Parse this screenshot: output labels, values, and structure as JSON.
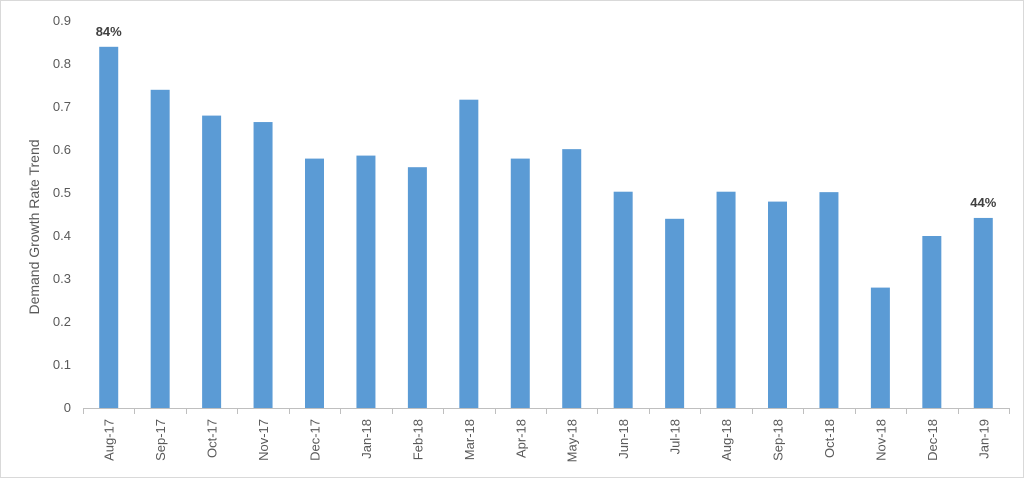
{
  "chart_data": {
    "type": "bar",
    "title": "",
    "xlabel": "",
    "ylabel": "Demand Growth Rate Trend",
    "ylim": [
      0,
      0.9
    ],
    "yticks": [
      "0",
      "0.1",
      "0.2",
      "0.3",
      "0.4",
      "0.5",
      "0.6",
      "0.7",
      "0.8",
      "0.9"
    ],
    "grid": false,
    "legend": "none",
    "bar_color": "#5b9bd5",
    "categories": [
      "Aug-17",
      "Sep-17",
      "Oct-17",
      "Nov-17",
      "Dec-17",
      "Jan-18",
      "Feb-18",
      "Mar-18",
      "Apr-18",
      "May-18",
      "Jun-18",
      "Jul-18",
      "Aug-18",
      "Sep-18",
      "Oct-18",
      "Nov-18",
      "Dec-18",
      "Jan-19"
    ],
    "values": [
      0.84,
      0.74,
      0.68,
      0.665,
      0.58,
      0.587,
      0.56,
      0.717,
      0.58,
      0.602,
      0.503,
      0.44,
      0.503,
      0.48,
      0.502,
      0.28,
      0.4,
      0.442
    ],
    "data_labels": [
      {
        "index": 0,
        "text": "84%"
      },
      {
        "index": 17,
        "text": "44%"
      }
    ]
  }
}
